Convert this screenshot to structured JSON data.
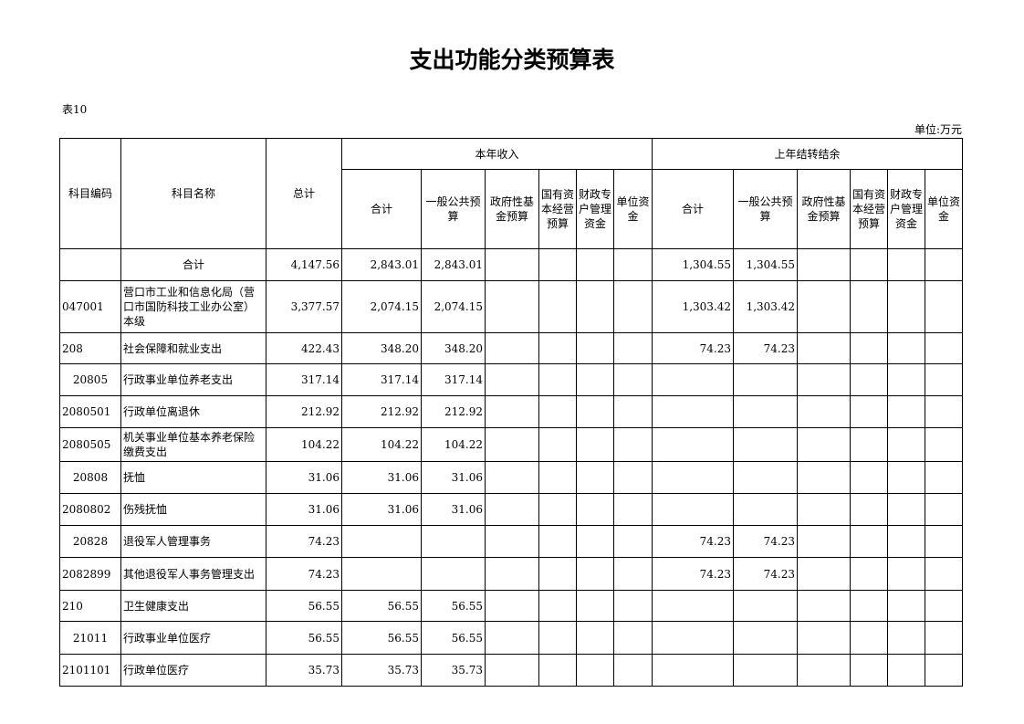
{
  "title": "支出功能分类预算表",
  "table_no": "表10",
  "unit": "单位:万元",
  "headers": {
    "code": "科目编码",
    "name": "科目名称",
    "total": "总计",
    "current": "本年收入",
    "carry": "上年结转结余",
    "sub": [
      "合计",
      "一般公共预算",
      "政府性基金预算",
      "国有资本经营预算",
      "财政专户管理资金",
      "单位资金"
    ]
  },
  "rows": [
    {
      "code": "",
      "name": "合计",
      "v": [
        "4,147.56",
        "2,843.01",
        "2,843.01",
        "",
        "",
        "",
        "",
        "1,304.55",
        "1,304.55",
        "",
        "",
        "",
        ""
      ]
    },
    {
      "code": "047001",
      "name": "营口市工业和信息化局（营口市国防科技工业办公室）本级",
      "v": [
        "3,377.57",
        "2,074.15",
        "2,074.15",
        "",
        "",
        "",
        "",
        "1,303.42",
        "1,303.42",
        "",
        "",
        "",
        ""
      ]
    },
    {
      "code": "208",
      "name": "社会保障和就业支出",
      "v": [
        "422.43",
        "348.20",
        "348.20",
        "",
        "",
        "",
        "",
        "74.23",
        "74.23",
        "",
        "",
        "",
        ""
      ]
    },
    {
      "code": "20805",
      "name": "行政事业单位养老支出",
      "v": [
        "317.14",
        "317.14",
        "317.14",
        "",
        "",
        "",
        "",
        "",
        "",
        "",
        "",
        "",
        ""
      ]
    },
    {
      "code": "2080501",
      "name": "行政单位离退休",
      "v": [
        "212.92",
        "212.92",
        "212.92",
        "",
        "",
        "",
        "",
        "",
        "",
        "",
        "",
        "",
        ""
      ]
    },
    {
      "code": "2080505",
      "name": "机关事业单位基本养老保险缴费支出",
      "v": [
        "104.22",
        "104.22",
        "104.22",
        "",
        "",
        "",
        "",
        "",
        "",
        "",
        "",
        "",
        ""
      ]
    },
    {
      "code": "20808",
      "name": "抚恤",
      "v": [
        "31.06",
        "31.06",
        "31.06",
        "",
        "",
        "",
        "",
        "",
        "",
        "",
        "",
        "",
        ""
      ]
    },
    {
      "code": "2080802",
      "name": "伤残抚恤",
      "v": [
        "31.06",
        "31.06",
        "31.06",
        "",
        "",
        "",
        "",
        "",
        "",
        "",
        "",
        "",
        ""
      ]
    },
    {
      "code": "20828",
      "name": "退役军人管理事务",
      "v": [
        "74.23",
        "",
        "",
        "",
        "",
        "",
        "",
        "74.23",
        "74.23",
        "",
        "",
        "",
        ""
      ]
    },
    {
      "code": "2082899",
      "name": "其他退役军人事务管理支出",
      "v": [
        "74.23",
        "",
        "",
        "",
        "",
        "",
        "",
        "74.23",
        "74.23",
        "",
        "",
        "",
        ""
      ]
    },
    {
      "code": "210",
      "name": "卫生健康支出",
      "v": [
        "56.55",
        "56.55",
        "56.55",
        "",
        "",
        "",
        "",
        "",
        "",
        "",
        "",
        "",
        ""
      ]
    },
    {
      "code": "21011",
      "name": "行政事业单位医疗",
      "v": [
        "56.55",
        "56.55",
        "56.55",
        "",
        "",
        "",
        "",
        "",
        "",
        "",
        "",
        "",
        ""
      ]
    },
    {
      "code": "2101101",
      "name": "行政单位医疗",
      "v": [
        "35.73",
        "35.73",
        "35.73",
        "",
        "",
        "",
        "",
        "",
        "",
        "",
        "",
        "",
        ""
      ]
    }
  ]
}
